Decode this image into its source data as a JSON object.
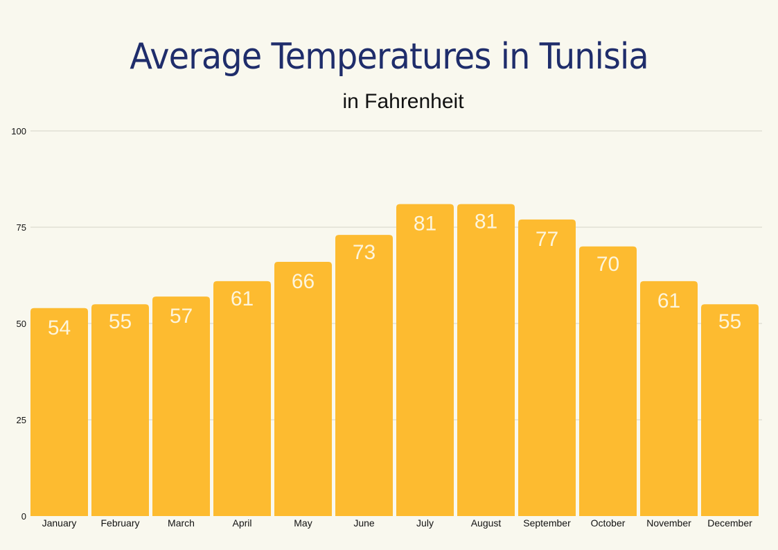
{
  "chart_data": {
    "type": "bar",
    "title": "Average Temperatures in Tunisia",
    "subtitle": "in Fahrenheit",
    "xlabel": "",
    "ylabel": "",
    "categories": [
      "January",
      "February",
      "March",
      "April",
      "May",
      "June",
      "July",
      "August",
      "September",
      "October",
      "November",
      "December"
    ],
    "values": [
      54,
      55,
      57,
      61,
      66,
      73,
      81,
      81,
      77,
      70,
      61,
      55
    ],
    "ylim": [
      0,
      100
    ],
    "yticks": [
      0,
      25,
      50,
      75,
      100
    ],
    "grid": true,
    "data_labels": true,
    "colors": {
      "bar": "#fdbb30",
      "label": "#fdf5dc",
      "title": "#1f2d6b",
      "background": "#f9f8ee",
      "grid": "#d5d3c8"
    }
  }
}
